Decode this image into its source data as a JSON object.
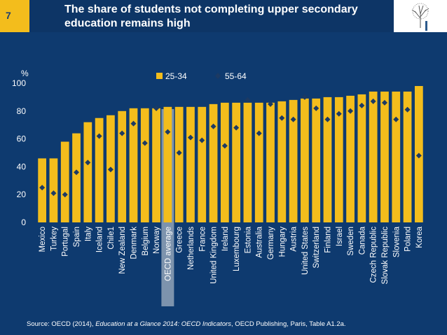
{
  "slide": {
    "number": "7",
    "title": "The share of students not completing upper secondary education remains high"
  },
  "source": {
    "prefix": "Source: OECD (2014), ",
    "publication": "Education at a Glance 2014: OECD Indicators",
    "suffix": ", OECD Publishing, Paris, Table A1.2a."
  },
  "colors": {
    "bar": "#f3bd1c",
    "marker": "#1c3a63",
    "highlight": "#7d93ad",
    "text": "#ffffff",
    "background": "#0e3a6f"
  },
  "chart_data": {
    "type": "bar",
    "ylabel": "%",
    "ylim": [
      0,
      100
    ],
    "yticks": [
      0,
      20,
      40,
      60,
      80,
      100
    ],
    "legend_position": "top-center",
    "highlight_category": "OECD average",
    "categories": [
      "Mexico",
      "Turkey",
      "Portugal",
      "Spain",
      "Italy",
      "Iceland",
      "Chile1",
      "New Zealand",
      "Denmark",
      "Belgium",
      "Norway",
      "OECD average",
      "Greece",
      "Netherlands",
      "France",
      "United Kingdom",
      "Ireland",
      "Luxembourg",
      "Estonia",
      "Australia",
      "Germany",
      "Hungary",
      "Austria",
      "United States",
      "Switzerland",
      "Finland",
      "Israel",
      "Sweden",
      "Canada",
      "Czech Republic",
      "Slovak Republic",
      "Slovenia",
      "Poland",
      "Korea"
    ],
    "series": [
      {
        "name": "25-34",
        "type": "bar",
        "values": [
          46,
          46,
          58,
          64,
          72,
          75,
          77,
          80,
          82,
          82,
          82,
          83,
          83,
          83,
          83,
          85,
          86,
          86,
          86,
          86,
          86,
          87,
          88,
          89,
          89,
          90,
          90,
          91,
          92,
          94,
          94,
          94,
          94,
          98
        ]
      },
      {
        "name": "55-64",
        "type": "marker",
        "values": [
          25,
          21,
          20,
          36,
          43,
          62,
          38,
          64,
          71,
          57,
          82,
          65,
          50,
          61,
          59,
          69,
          55,
          68,
          88,
          64,
          85,
          75,
          74,
          90,
          82,
          74,
          78,
          80,
          84,
          87,
          86,
          74,
          81,
          48
        ]
      }
    ]
  }
}
